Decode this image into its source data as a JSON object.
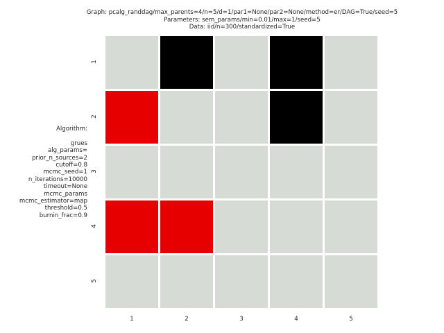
{
  "title_lines": [
    "Graph: pcalg_randdag/max_parents=4/n=5/d=1/par1=None/par2=None/method=er/DAG=True/seed=5",
    "Parameters: sem_params/min=0.01/max=1/seed=5",
    "Data: iid/n=300/standardized=True"
  ],
  "algorithm_heading": "Algorithm:",
  "algorithm_lines": [
    "grues",
    "alg_params=",
    "prior_n_sources=2",
    "cutoff=0.8",
    "mcmc_seed=1",
    "n_iterations=10000",
    "timeout=None",
    "mcmc_params",
    "mcmc_estimator=map",
    "threshold=0.5",
    "burnin_frac=0.9"
  ],
  "colors": {
    "empty": "#d7dbd6",
    "correct_edge": "#000000",
    "wrong_edge": "#e60000"
  },
  "chart_data": {
    "type": "heatmap",
    "x_labels": [
      "1",
      "2",
      "3",
      "4",
      "5"
    ],
    "y_labels": [
      "1",
      "2",
      "3",
      "4",
      "5"
    ],
    "matrix": [
      [
        "empty",
        "correct_edge",
        "empty",
        "correct_edge",
        "empty"
      ],
      [
        "wrong_edge",
        "empty",
        "empty",
        "correct_edge",
        "empty"
      ],
      [
        "empty",
        "empty",
        "empty",
        "empty",
        "empty"
      ],
      [
        "wrong_edge",
        "wrong_edge",
        "empty",
        "empty",
        "empty"
      ],
      [
        "empty",
        "empty",
        "empty",
        "empty",
        "empty"
      ]
    ]
  }
}
